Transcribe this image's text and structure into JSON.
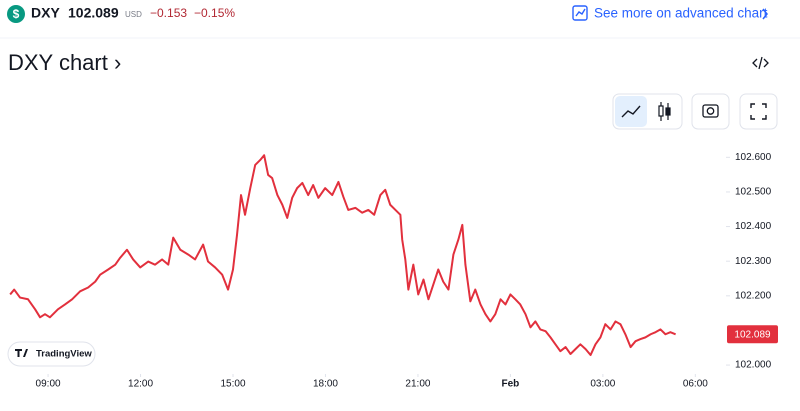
{
  "header": {
    "icon": "$",
    "symbol": "DXY",
    "price": "102.089",
    "currency": "USD",
    "change": "−0.153",
    "change_percent": "−0.15%",
    "link": "See more on advanced chart"
  },
  "title": "DXY chart ›",
  "branding": "TradingView",
  "chart_data": {
    "type": "line",
    "color": "#e2303d",
    "x": [
      7.77,
      7.9,
      8.09,
      8.35,
      8.58,
      8.74,
      8.9,
      9.06,
      9.32,
      9.55,
      9.78,
      10.04,
      10.3,
      10.53,
      10.69,
      10.95,
      11.18,
      11.34,
      11.56,
      11.76,
      11.99,
      12.25,
      12.47,
      12.7,
      12.9,
      13.06,
      13.29,
      13.55,
      13.77,
      14.03,
      14.19,
      14.42,
      14.65,
      14.84,
      15.0,
      15.13,
      15.26,
      15.39,
      15.56,
      15.72,
      15.88,
      16.01,
      16.14,
      16.27,
      16.44,
      16.6,
      16.76,
      16.92,
      17.08,
      17.25,
      17.44,
      17.6,
      17.77,
      17.99,
      18.22,
      18.42,
      18.58,
      18.74,
      18.97,
      19.19,
      19.39,
      19.58,
      19.78,
      19.94,
      20.1,
      20.27,
      20.43,
      20.49,
      20.59,
      20.69,
      20.85,
      21.01,
      21.18,
      21.34,
      21.5,
      21.66,
      21.82,
      21.99,
      22.15,
      22.31,
      22.44,
      22.54,
      22.7,
      22.86,
      23.03,
      23.19,
      23.35,
      23.51,
      23.68,
      23.84,
      24.0,
      24.16,
      24.32,
      24.49,
      24.65,
      24.81,
      24.97,
      25.14,
      25.3,
      25.46,
      25.62,
      25.79,
      25.95,
      26.11,
      26.27,
      26.44,
      26.6,
      26.76,
      26.92,
      27.08,
      27.25,
      27.41,
      27.57,
      27.73,
      27.9,
      28.06,
      28.22,
      28.38,
      28.55,
      28.71,
      28.87,
      29.03,
      29.19,
      29.36
    ],
    "values": [
      102.204,
      102.218,
      102.195,
      102.19,
      102.161,
      102.138,
      102.147,
      102.138,
      102.161,
      102.175,
      102.19,
      102.213,
      102.224,
      102.241,
      102.261,
      102.276,
      102.29,
      102.31,
      102.333,
      102.305,
      102.282,
      102.299,
      102.29,
      102.305,
      102.29,
      102.368,
      102.333,
      102.319,
      102.305,
      102.348,
      102.299,
      102.282,
      102.261,
      102.218,
      102.276,
      102.376,
      102.491,
      102.434,
      102.511,
      102.578,
      102.592,
      102.606,
      102.549,
      102.54,
      102.491,
      102.463,
      102.425,
      102.483,
      102.511,
      102.526,
      102.491,
      102.52,
      102.483,
      102.511,
      102.491,
      102.529,
      102.486,
      102.448,
      102.454,
      102.44,
      102.448,
      102.434,
      102.491,
      102.506,
      102.463,
      102.448,
      102.434,
      102.362,
      102.305,
      102.218,
      102.29,
      102.204,
      102.247,
      102.19,
      102.233,
      102.276,
      102.241,
      102.218,
      102.319,
      102.362,
      102.405,
      102.29,
      102.184,
      102.218,
      102.175,
      102.147,
      102.126,
      102.147,
      102.19,
      102.175,
      102.204,
      102.19,
      102.175,
      102.147,
      102.109,
      102.126,
      102.103,
      102.098,
      102.08,
      102.06,
      102.04,
      102.052,
      102.032,
      102.046,
      102.06,
      102.046,
      102.029,
      102.06,
      102.08,
      102.118,
      102.103,
      102.126,
      102.118,
      102.089,
      102.052,
      102.069,
      102.075,
      102.08,
      102.089,
      102.095,
      102.103,
      102.089,
      102.095,
      102.089
    ],
    "xlim": [
      7.7,
      30.8
    ],
    "ylim": [
      101.98,
      102.65
    ],
    "xticks": [
      {
        "value": 9,
        "label": "09:00"
      },
      {
        "value": 12,
        "label": "12:00"
      },
      {
        "value": 15,
        "label": "15:00"
      },
      {
        "value": 18,
        "label": "18:00"
      },
      {
        "value": 21,
        "label": "21:00"
      },
      {
        "value": 24,
        "label": "Feb"
      },
      {
        "value": 27,
        "label": "03:00"
      },
      {
        "value": 30,
        "label": "06:00"
      }
    ],
    "yticks": [
      {
        "value": 102.0,
        "label": "102.000"
      },
      {
        "value": 102.2,
        "label": "102.200"
      },
      {
        "value": 102.3,
        "label": "102.300"
      },
      {
        "value": 102.4,
        "label": "102.400"
      },
      {
        "value": 102.5,
        "label": "102.500"
      },
      {
        "value": 102.6,
        "label": "102.600"
      }
    ],
    "last_price": {
      "value": 102.089,
      "label": "102.089"
    }
  }
}
